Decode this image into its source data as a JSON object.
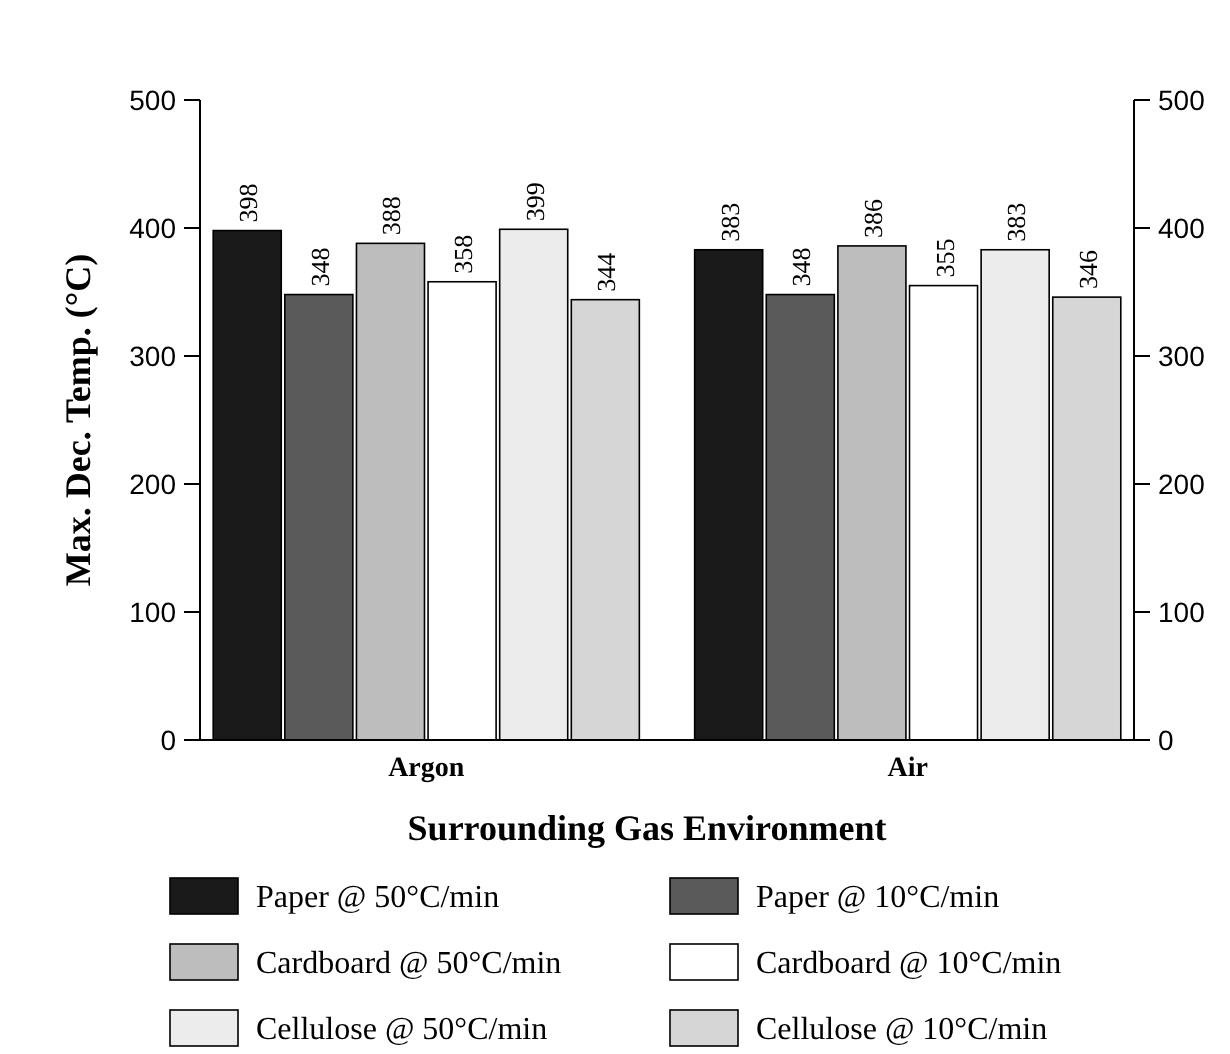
{
  "chart_data": {
    "type": "bar",
    "xlabel": "Surrounding Gas Environment",
    "ylabel": "Max. Dec. Temp. (°C)",
    "categories": [
      "Argon",
      "Air"
    ],
    "series": [
      {
        "name": "Paper @ 50°C/min",
        "color": "#1a1a1a",
        "values": [
          398,
          383
        ]
      },
      {
        "name": "Paper @ 10°C/min",
        "color": "#5a5a5a",
        "values": [
          348,
          348
        ]
      },
      {
        "name": "Cardboard @ 50°C/min",
        "color": "#bdbdbd",
        "values": [
          388,
          386
        ]
      },
      {
        "name": "Cardboard @ 10°C/min",
        "color": "#ffffff",
        "values": [
          358,
          355
        ]
      },
      {
        "name": "Cellulose @ 50°C/min",
        "color": "#ececec",
        "values": [
          399,
          383
        ]
      },
      {
        "name": "Cellulose @ 10°C/min",
        "color": "#d6d6d6",
        "values": [
          344,
          346
        ]
      }
    ],
    "ylim": [
      0,
      500
    ],
    "yticks": [
      0,
      100,
      200,
      300,
      400,
      500
    ],
    "y2lim": [
      0,
      500
    ],
    "y2ticks": [
      0,
      100,
      200,
      300,
      400,
      500
    ],
    "data_labels": true,
    "legend": "bottom",
    "grid": false
  }
}
